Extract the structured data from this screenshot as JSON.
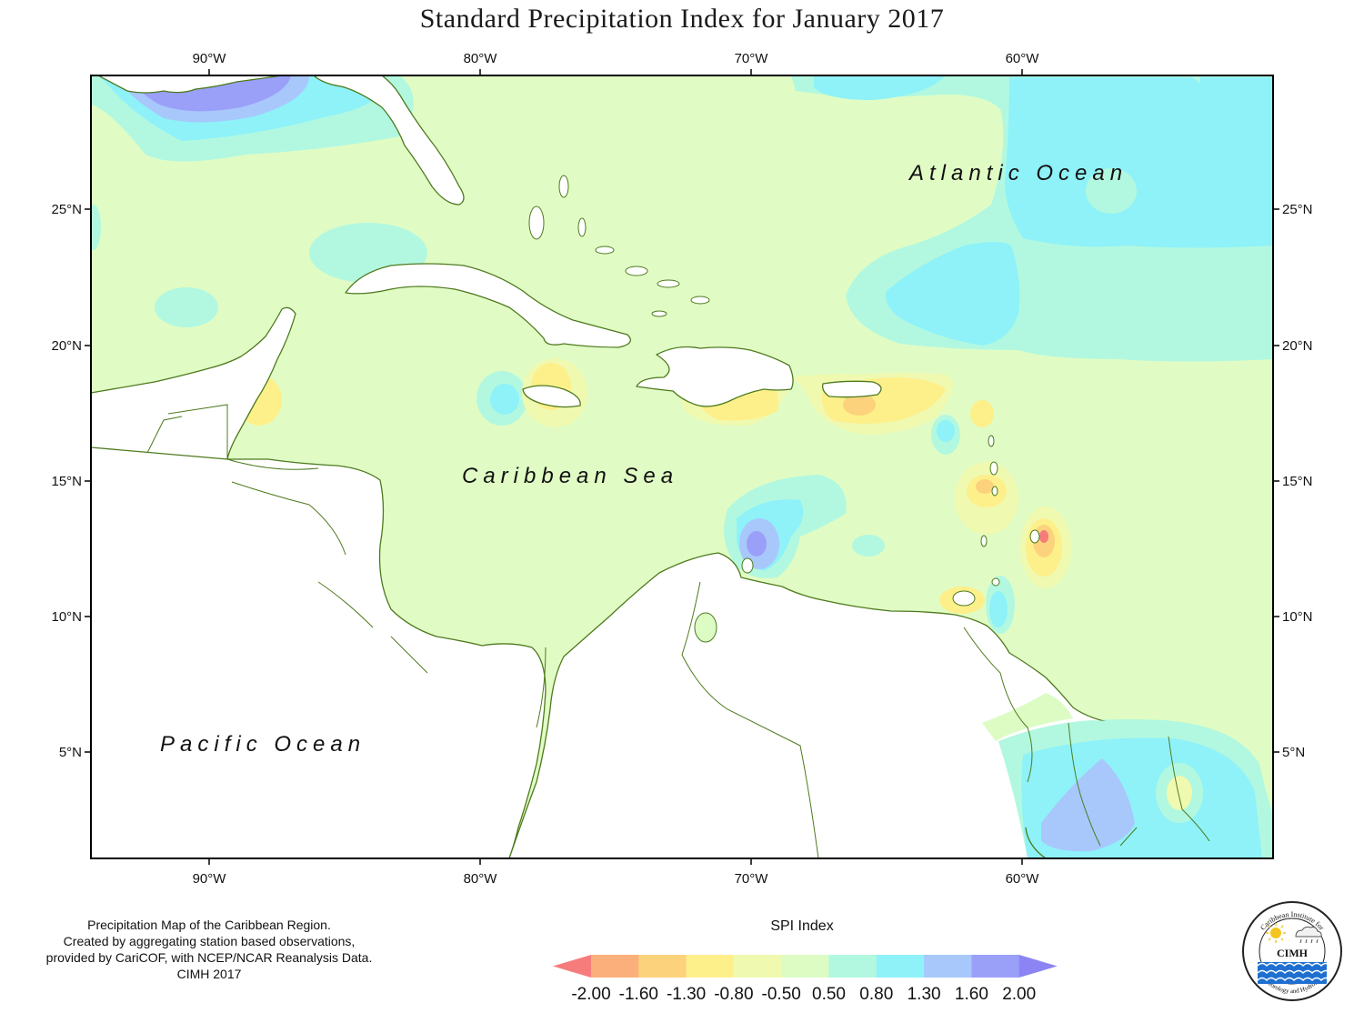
{
  "title": "Standard Precipitation Index for January 2017",
  "map": {
    "lon_ticks": [
      "90°W",
      "80°W",
      "70°W",
      "60°W"
    ],
    "lat_ticks": [
      "25°N",
      "20°N",
      "15°N",
      "10°N",
      "5°N"
    ],
    "labels": {
      "atlantic": "Atlantic Ocean",
      "caribbean": "Caribbean Sea",
      "pacific": "Pacific Ocean"
    }
  },
  "credits": [
    "Precipitation Map of the Caribbean Region.",
    "Created by aggregating station based observations,",
    "provided by CariCOF, with NCEP/NCAR Reanalysis Data.",
    "CIMH 2017"
  ],
  "legend": {
    "title": "SPI Index",
    "values": [
      "-2.00",
      "-1.60",
      "-1.30",
      "-0.80",
      "-0.50",
      "0.50",
      "0.80",
      "1.30",
      "1.60",
      "2.00"
    ],
    "colors": [
      "#f67c7c",
      "#fbb07c",
      "#fdd27c",
      "#fdf08a",
      "#f0f9b0",
      "#dcfcc4",
      "#b2f8e0",
      "#8ef2f8",
      "#a8c8fc",
      "#9aa0f8",
      "#8c84f4"
    ]
  },
  "logo": {
    "text_top": "Caribbean Institute for",
    "text_bottom": "Meteorology and Hydrology",
    "abbr": "CIMH"
  },
  "colors": {
    "land": "#ffffff",
    "background_sea": "#e0fcc4",
    "coast": "#4e7a1e",
    "frame": "#000000"
  }
}
